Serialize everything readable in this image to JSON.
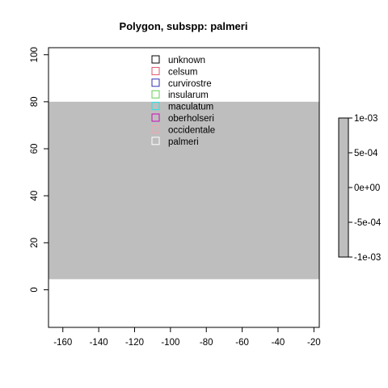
{
  "chart_data": {
    "type": "map",
    "title": "Polygon, subspp: palmeri",
    "xlim": [
      -168,
      -17
    ],
    "ylim": [
      -16,
      103
    ],
    "x_ticks": [
      -160,
      -140,
      -120,
      -100,
      -80,
      -60,
      -40,
      -20
    ],
    "y_ticks": [
      0,
      20,
      40,
      60,
      80,
      100
    ],
    "filled_region": {
      "x": [
        -168,
        -17
      ],
      "y": [
        4.5,
        80
      ],
      "fill": "#bebebe"
    },
    "legend": {
      "placement": "top-center",
      "items": [
        {
          "label": "unknown",
          "color": "#000000"
        },
        {
          "label": "celsum",
          "color": "#df536b"
        },
        {
          "label": "curvirostre",
          "color": "#2e2eb8"
        },
        {
          "label": "insularum",
          "color": "#61d04f"
        },
        {
          "label": "maculatum",
          "color": "#28e2e5"
        },
        {
          "label": "oberholseri",
          "color": "#cd0bbc"
        },
        {
          "label": "occidentale",
          "color": "#f5a3b0"
        },
        {
          "label": "palmeri",
          "color": "#ffffff"
        }
      ]
    },
    "colorbar": {
      "placement": "right",
      "range": [
        -0.001,
        0.001
      ],
      "fill": "#bebebe",
      "tick_values": [
        0.001,
        0.0005,
        0,
        -0.0005,
        -0.001
      ],
      "tick_labels": [
        "1e-03",
        "5e-04",
        "0e+00",
        "-5e-04",
        "-1e-03"
      ]
    }
  }
}
